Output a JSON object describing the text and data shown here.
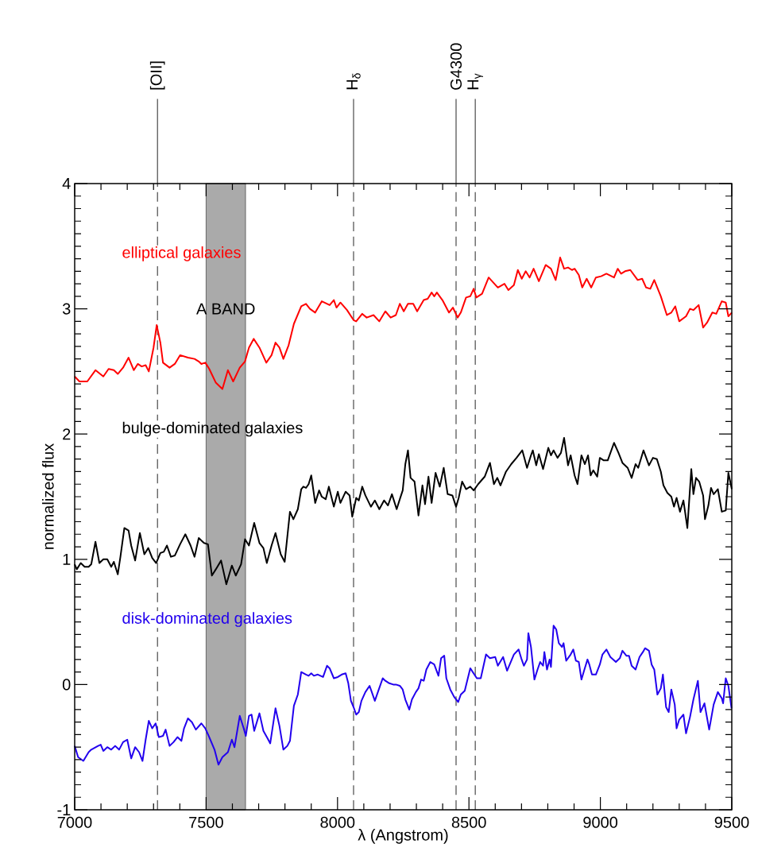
{
  "chart_data": {
    "type": "line",
    "xlabel": "λ (Angstrom)",
    "ylabel": "normalized flux",
    "xlim": [
      7000,
      9500
    ],
    "ylim": [
      -1,
      4
    ],
    "xticks": [
      7000,
      7500,
      8000,
      8500,
      9000,
      9500
    ],
    "yticks": [
      -1,
      0,
      1,
      2,
      3,
      4
    ],
    "legend": "left",
    "series": [
      {
        "name": "elliptical galaxies",
        "color": "#ff0000",
        "x": [
          7000,
          7018,
          7048,
          7079,
          7109,
          7129,
          7149,
          7164,
          7184,
          7205,
          7225,
          7240,
          7255,
          7270,
          7282,
          7300,
          7312,
          7326,
          7336,
          7361,
          7381,
          7401,
          7431,
          7456,
          7472,
          7482,
          7497,
          7512,
          7537,
          7562,
          7583,
          7603,
          7628,
          7648,
          7663,
          7681,
          7703,
          7729,
          7749,
          7764,
          7779,
          7794,
          7814,
          7834,
          7862,
          7880,
          7895,
          7915,
          7940,
          7970,
          7986,
          7996,
          8011,
          8036,
          8061,
          8071,
          8094,
          8111,
          8137,
          8159,
          8182,
          8202,
          8222,
          8237,
          8252,
          8268,
          8288,
          8303,
          8328,
          8343,
          8358,
          8368,
          8378,
          8399,
          8424,
          8439,
          8457,
          8469,
          8489,
          8505,
          8518,
          8528,
          8550,
          8575,
          8610,
          8635,
          8650,
          8671,
          8686,
          8701,
          8716,
          8731,
          8746,
          8766,
          8792,
          8812,
          8830,
          8847,
          8862,
          8877,
          8892,
          8902,
          8918,
          8931,
          8948,
          8965,
          8983,
          9003,
          9023,
          9052,
          9066,
          9079,
          9094,
          9114,
          9142,
          9159,
          9174,
          9190,
          9205,
          9230,
          9253,
          9270,
          9285,
          9300,
          9326,
          9341,
          9354,
          9374,
          9391,
          9406,
          9426,
          9441,
          9462,
          9477,
          9487,
          9500
        ],
        "values": [
          2.46,
          2.42,
          2.42,
          2.51,
          2.46,
          2.52,
          2.51,
          2.48,
          2.53,
          2.61,
          2.51,
          2.56,
          2.54,
          2.55,
          2.5,
          2.69,
          2.87,
          2.73,
          2.57,
          2.53,
          2.56,
          2.63,
          2.61,
          2.6,
          2.58,
          2.56,
          2.57,
          2.52,
          2.41,
          2.36,
          2.51,
          2.42,
          2.53,
          2.58,
          2.69,
          2.76,
          2.69,
          2.57,
          2.63,
          2.73,
          2.69,
          2.6,
          2.71,
          2.88,
          3.02,
          3.04,
          3.0,
          2.97,
          3.06,
          3.03,
          3.07,
          3.01,
          3.05,
          2.99,
          2.91,
          2.9,
          2.96,
          2.93,
          2.95,
          2.9,
          2.98,
          2.93,
          2.95,
          3.04,
          2.98,
          3.04,
          3.04,
          2.98,
          3.07,
          3.08,
          3.13,
          3.1,
          3.13,
          3.07,
          2.97,
          3.01,
          2.93,
          2.97,
          3.09,
          3.1,
          3.16,
          3.09,
          3.12,
          3.25,
          3.17,
          3.2,
          3.15,
          3.19,
          3.31,
          3.24,
          3.3,
          3.25,
          3.32,
          3.22,
          3.35,
          3.32,
          3.23,
          3.41,
          3.32,
          3.33,
          3.31,
          3.32,
          3.27,
          3.17,
          3.24,
          3.17,
          3.25,
          3.26,
          3.28,
          3.25,
          3.32,
          3.28,
          3.3,
          3.31,
          3.23,
          3.24,
          3.17,
          3.16,
          3.23,
          3.1,
          2.95,
          2.97,
          3.02,
          2.9,
          2.94,
          3.0,
          2.99,
          3.03,
          2.85,
          2.89,
          2.97,
          2.96,
          3.06,
          3.05,
          2.94,
          2.97
        ]
      },
      {
        "name": "bulge-dominated galaxies",
        "color": "#000000",
        "x": [
          7000,
          7008,
          7023,
          7038,
          7053,
          7063,
          7079,
          7094,
          7109,
          7124,
          7139,
          7149,
          7164,
          7174,
          7189,
          7205,
          7215,
          7230,
          7248,
          7265,
          7280,
          7295,
          7310,
          7326,
          7339,
          7351,
          7366,
          7381,
          7401,
          7421,
          7441,
          7456,
          7472,
          7492,
          7507,
          7522,
          7537,
          7557,
          7577,
          7598,
          7613,
          7633,
          7648,
          7663,
          7683,
          7703,
          7718,
          7731,
          7749,
          7764,
          7784,
          7799,
          7819,
          7832,
          7849,
          7862,
          7870,
          7880,
          7890,
          7900,
          7915,
          7930,
          7940,
          7955,
          7967,
          7986,
          8001,
          8011,
          8031,
          8046,
          8056,
          8071,
          8081,
          8094,
          8106,
          8127,
          8142,
          8159,
          8177,
          8192,
          8207,
          8225,
          8237,
          8248,
          8258,
          8268,
          8278,
          8293,
          8308,
          8323,
          8333,
          8346,
          8358,
          8373,
          8389,
          8404,
          8419,
          8437,
          8451,
          8461,
          8474,
          8489,
          8505,
          8518,
          8535,
          8560,
          8580,
          8595,
          8608,
          8620,
          8641,
          8661,
          8681,
          8703,
          8721,
          8736,
          8743,
          8756,
          8766,
          8782,
          8802,
          8812,
          8822,
          8837,
          8850,
          8862,
          8877,
          8887,
          8902,
          8913,
          8928,
          8941,
          8953,
          8963,
          8973,
          8988,
          8998,
          9013,
          9028,
          9052,
          9069,
          9084,
          9104,
          9119,
          9134,
          9144,
          9164,
          9185,
          9200,
          9215,
          9230,
          9240,
          9255,
          9270,
          9280,
          9290,
          9303,
          9316,
          9331,
          9346,
          9354,
          9364,
          9376,
          9391,
          9398,
          9411,
          9421,
          9431,
          9447,
          9462,
          9477,
          9487,
          9500
        ],
        "values": [
          0.96,
          0.92,
          0.97,
          0.94,
          0.94,
          0.96,
          1.14,
          0.97,
          1.0,
          1.0,
          0.94,
          0.98,
          0.88,
          1.02,
          1.25,
          1.23,
          1.11,
          0.99,
          1.21,
          1.04,
          1.09,
          1.01,
          0.97,
          1.05,
          1.06,
          1.11,
          1.02,
          1.03,
          1.12,
          1.2,
          1.11,
          1.02,
          1.17,
          1.13,
          1.12,
          0.87,
          0.92,
          0.99,
          0.8,
          0.95,
          0.87,
          0.96,
          1.16,
          1.11,
          1.29,
          1.13,
          1.09,
          0.97,
          1.11,
          1.21,
          1.04,
          0.98,
          1.38,
          1.32,
          1.4,
          1.56,
          1.58,
          1.57,
          1.6,
          1.67,
          1.45,
          1.55,
          1.5,
          1.48,
          1.58,
          1.42,
          1.54,
          1.45,
          1.54,
          1.51,
          1.34,
          1.49,
          1.47,
          1.58,
          1.51,
          1.42,
          1.47,
          1.4,
          1.47,
          1.43,
          1.52,
          1.4,
          1.48,
          1.55,
          1.76,
          1.87,
          1.65,
          1.62,
          1.35,
          1.59,
          1.44,
          1.66,
          1.45,
          1.69,
          1.58,
          1.73,
          1.52,
          1.51,
          1.42,
          1.49,
          1.62,
          1.56,
          1.58,
          1.55,
          1.6,
          1.66,
          1.77,
          1.6,
          1.65,
          1.59,
          1.7,
          1.76,
          1.81,
          1.87,
          1.73,
          1.83,
          1.87,
          1.75,
          1.84,
          1.72,
          1.89,
          1.83,
          1.87,
          1.81,
          1.85,
          1.97,
          1.75,
          1.83,
          1.67,
          1.6,
          1.83,
          1.76,
          1.83,
          1.67,
          1.71,
          1.66,
          1.81,
          1.79,
          1.79,
          1.93,
          1.85,
          1.77,
          1.73,
          1.65,
          1.76,
          1.73,
          1.87,
          1.75,
          1.81,
          1.8,
          1.7,
          1.59,
          1.53,
          1.5,
          1.42,
          1.49,
          1.38,
          1.47,
          1.25,
          1.72,
          1.52,
          1.65,
          1.62,
          1.51,
          1.32,
          1.43,
          1.57,
          1.52,
          1.56,
          1.38,
          1.39,
          1.69,
          1.56
        ]
      },
      {
        "name": "disk-dominated galaxies",
        "color": "#2200ee",
        "x": [
          7000,
          7013,
          7033,
          7053,
          7063,
          7089,
          7099,
          7109,
          7124,
          7139,
          7154,
          7169,
          7184,
          7200,
          7215,
          7230,
          7245,
          7258,
          7270,
          7282,
          7295,
          7308,
          7320,
          7336,
          7346,
          7361,
          7376,
          7391,
          7406,
          7416,
          7431,
          7446,
          7461,
          7482,
          7497,
          7512,
          7532,
          7547,
          7562,
          7583,
          7598,
          7608,
          7628,
          7643,
          7651,
          7663,
          7673,
          7683,
          7703,
          7718,
          7734,
          7744,
          7764,
          7779,
          7794,
          7809,
          7819,
          7834,
          7849,
          7862,
          7880,
          7890,
          7900,
          7910,
          7925,
          7935,
          7945,
          7960,
          7970,
          7986,
          8001,
          8016,
          8031,
          8041,
          8051,
          8061,
          8071,
          8081,
          8091,
          8106,
          8122,
          8137,
          8142,
          8157,
          8172,
          8182,
          8197,
          8212,
          8222,
          8237,
          8248,
          8258,
          8273,
          8283,
          8298,
          8308,
          8318,
          8328,
          8338,
          8353,
          8368,
          8384,
          8394,
          8406,
          8414,
          8429,
          8444,
          8459,
          8469,
          8484,
          8505,
          8530,
          8545,
          8565,
          8580,
          8600,
          8610,
          8630,
          8645,
          8671,
          8689,
          8699,
          8709,
          8721,
          8726,
          8736,
          8749,
          8761,
          8771,
          8782,
          8787,
          8797,
          8807,
          8812,
          8822,
          8832,
          8842,
          8854,
          8860,
          8870,
          8887,
          8897,
          8907,
          8918,
          8928,
          8938,
          8951,
          8958,
          8968,
          8983,
          8998,
          9008,
          9023,
          9038,
          9059,
          9074,
          9084,
          9099,
          9109,
          9119,
          9134,
          9149,
          9162,
          9170,
          9185,
          9195,
          9205,
          9217,
          9230,
          9238,
          9250,
          9260,
          9270,
          9283,
          9290,
          9300,
          9316,
          9326,
          9341,
          9354,
          9371,
          9381,
          9396,
          9414,
          9431,
          9447,
          9462,
          9467,
          9477,
          9487,
          9499
        ],
        "values": [
          -0.49,
          -0.58,
          -0.61,
          -0.54,
          -0.52,
          -0.49,
          -0.48,
          -0.53,
          -0.5,
          -0.52,
          -0.49,
          -0.52,
          -0.46,
          -0.44,
          -0.59,
          -0.5,
          -0.54,
          -0.61,
          -0.44,
          -0.29,
          -0.35,
          -0.31,
          -0.42,
          -0.41,
          -0.36,
          -0.49,
          -0.46,
          -0.42,
          -0.45,
          -0.35,
          -0.27,
          -0.3,
          -0.36,
          -0.31,
          -0.35,
          -0.42,
          -0.52,
          -0.64,
          -0.58,
          -0.54,
          -0.44,
          -0.5,
          -0.25,
          -0.35,
          -0.41,
          -0.25,
          -0.24,
          -0.37,
          -0.23,
          -0.37,
          -0.43,
          -0.47,
          -0.19,
          -0.33,
          -0.52,
          -0.49,
          -0.45,
          -0.17,
          -0.08,
          0.1,
          0.08,
          0.07,
          0.09,
          0.07,
          0.08,
          0.07,
          0.06,
          0.15,
          0.13,
          0.05,
          0.06,
          0.08,
          0.09,
          0.01,
          -0.13,
          -0.18,
          -0.24,
          -0.22,
          -0.13,
          -0.06,
          -0.01,
          -0.1,
          -0.13,
          -0.04,
          0.05,
          0.03,
          0.01,
          0.0,
          0.0,
          -0.01,
          -0.04,
          -0.12,
          -0.2,
          -0.12,
          -0.06,
          -0.03,
          0.04,
          0.03,
          0.12,
          0.18,
          0.16,
          0.07,
          0.21,
          0.23,
          0.05,
          -0.04,
          -0.1,
          -0.14,
          -0.08,
          -0.05,
          0.13,
          0.05,
          0.05,
          0.24,
          0.21,
          0.22,
          0.15,
          0.22,
          0.11,
          0.24,
          0.28,
          0.21,
          0.15,
          0.2,
          0.41,
          0.3,
          0.04,
          0.12,
          0.18,
          0.15,
          0.26,
          0.12,
          0.2,
          0.14,
          0.47,
          0.44,
          0.33,
          0.3,
          0.33,
          0.19,
          0.24,
          0.28,
          0.19,
          0.18,
          0.04,
          0.11,
          0.2,
          0.16,
          0.08,
          0.08,
          0.16,
          0.24,
          0.28,
          0.22,
          0.18,
          0.21,
          0.27,
          0.23,
          0.23,
          0.15,
          0.12,
          0.22,
          0.26,
          0.29,
          0.27,
          0.16,
          0.12,
          -0.08,
          -0.03,
          0.08,
          -0.18,
          -0.22,
          -0.04,
          -0.16,
          -0.35,
          -0.28,
          -0.24,
          -0.39,
          -0.26,
          -0.12,
          0.03,
          -0.22,
          -0.15,
          -0.36,
          -0.16,
          -0.06,
          -0.11,
          -0.15,
          0.05,
          -0.01,
          -0.19
        ]
      }
    ],
    "ref_lines": [
      {
        "axis": "x",
        "value": 7315,
        "label": "[OII]",
        "line_style": "dashed"
      },
      {
        "axis": "x",
        "value": 8061,
        "label": "H$_{δ}$",
        "line_style": "dashed"
      },
      {
        "axis": "x",
        "value": 8451,
        "label": "G4300",
        "line_style": "dashed"
      },
      {
        "axis": "x",
        "value": 8524,
        "label": "H$_{γ}$",
        "line_style": "dashed"
      }
    ],
    "bands": [
      {
        "axis": "x",
        "from": 7500,
        "to": 7650,
        "label": "A BAND",
        "color": "#aaaaaa"
      }
    ]
  }
}
